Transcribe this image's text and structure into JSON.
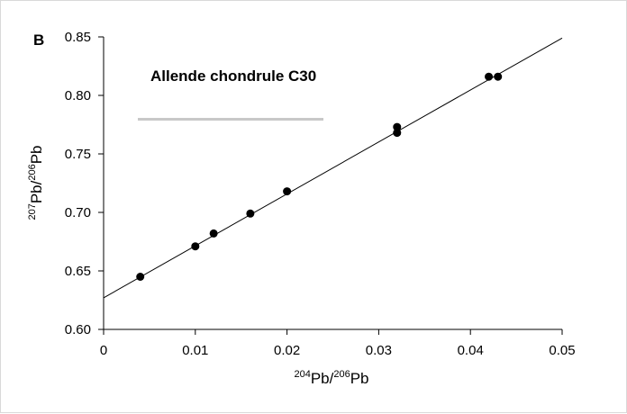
{
  "chart_data": {
    "type": "scatter",
    "panel_label": "B",
    "annotation": "Allende chondrule C30",
    "xlabel": {
      "sup1": "204",
      "base1": "Pb/",
      "sup2": "206",
      "base2": "Pb"
    },
    "ylabel": {
      "sup1": "207",
      "base1": "Pb/",
      "sup2": "206",
      "base2": "Pb"
    },
    "xlim": [
      0,
      0.05
    ],
    "ylim": [
      0.6,
      0.85
    ],
    "x_ticks": [
      "0",
      "0.01",
      "0.02",
      "0.03",
      "0.04",
      "0.05"
    ],
    "y_ticks": [
      "0.60",
      "0.65",
      "0.70",
      "0.75",
      "0.80",
      "0.85"
    ],
    "grid": false,
    "series": [
      {
        "points": [
          {
            "x": 0.004,
            "y": 0.645
          },
          {
            "x": 0.01,
            "y": 0.671
          },
          {
            "x": 0.012,
            "y": 0.682
          },
          {
            "x": 0.016,
            "y": 0.699
          },
          {
            "x": 0.02,
            "y": 0.718
          },
          {
            "x": 0.032,
            "y": 0.773
          },
          {
            "x": 0.032,
            "y": 0.768
          },
          {
            "x": 0.042,
            "y": 0.816
          },
          {
            "x": 0.043,
            "y": 0.816
          }
        ],
        "color": "#000000"
      }
    ],
    "fit_line": {
      "x": [
        0,
        0.05
      ],
      "y": [
        0.627,
        0.849
      ],
      "color": "#000000"
    }
  }
}
